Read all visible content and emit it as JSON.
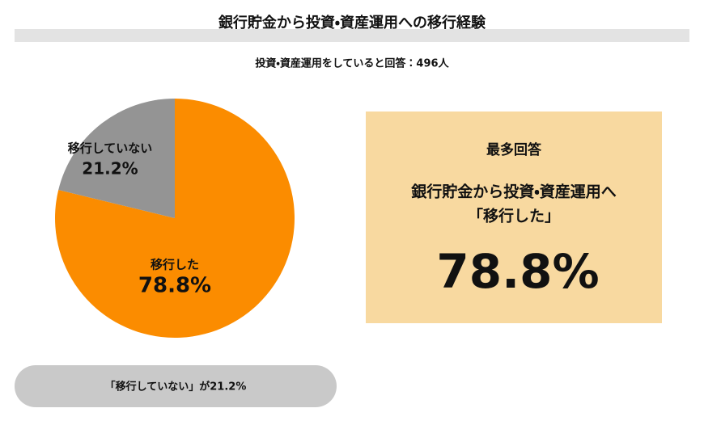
{
  "chart_data": {
    "type": "pie",
    "title": "銀行貯金から投資・資産運用への移行経験",
    "subtitle": "投資・資産運用をしていると回答：496人",
    "categories": [
      "移行した",
      "移行していない"
    ],
    "values": [
      78.8,
      21.2
    ],
    "value_labels": [
      "78.8%",
      "21.2%"
    ],
    "colors": [
      "#fb8c00",
      "#949494"
    ]
  },
  "callout": {
    "heading": "最多回答",
    "lines": [
      "銀行貯金から投資・資産運用へ",
      "「移行した」"
    ],
    "value_label": "78.8%"
  },
  "footnote": "「移行していない」が21.2%"
}
